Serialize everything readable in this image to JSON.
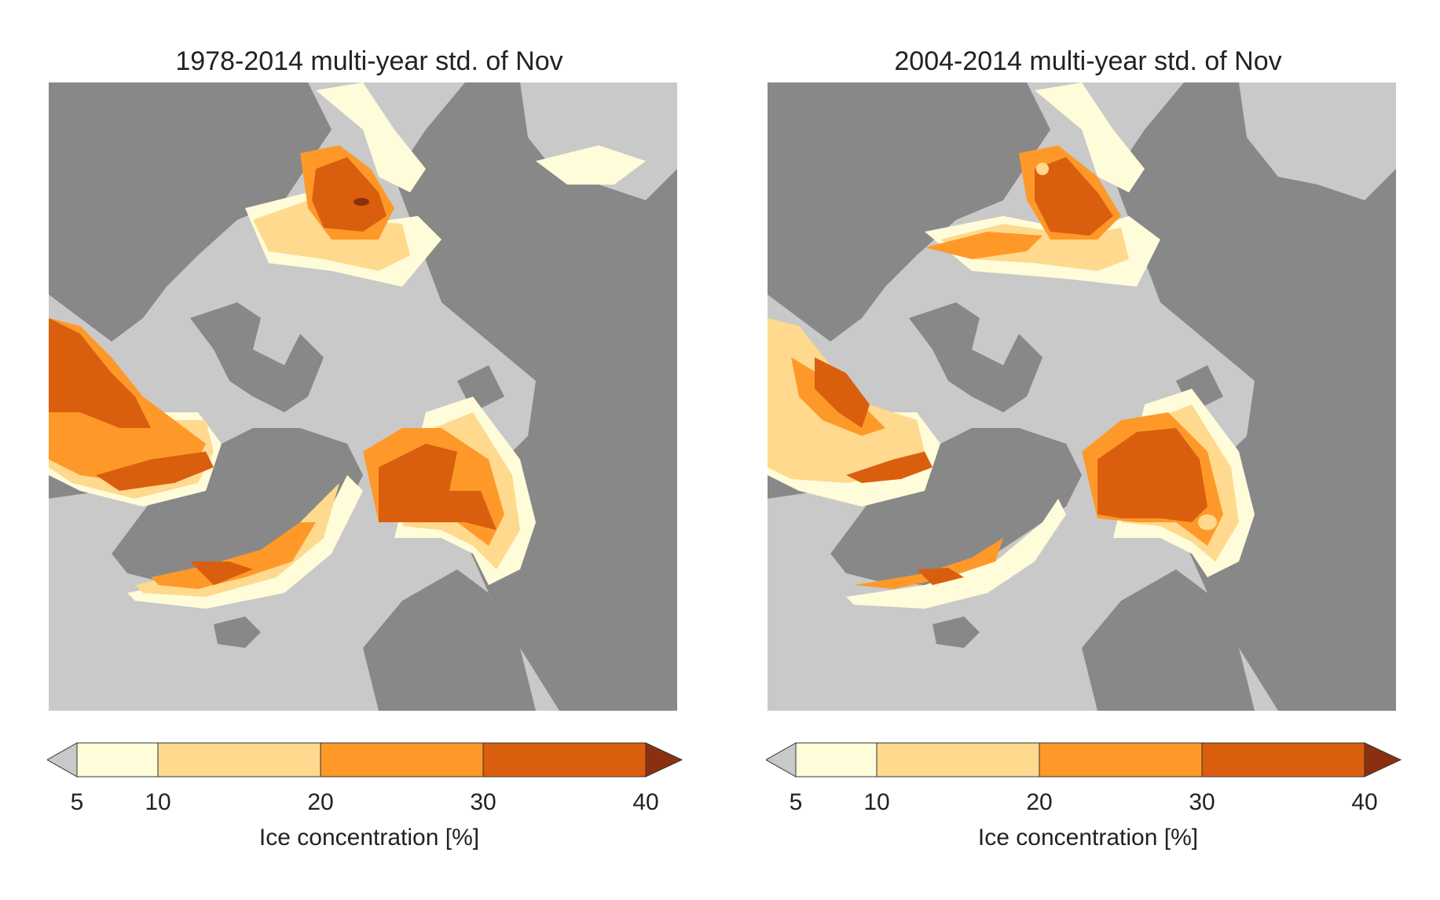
{
  "colors": {
    "ocean_ice": "#c9c9c9",
    "land": "#888888",
    "under": "#c9c9c9",
    "over": "#8a3010",
    "bins": [
      "#fffcd9",
      "#fed98e",
      "#fe9929",
      "#d95f0e"
    ]
  },
  "colorbar": {
    "label": "Ice concentration [%]",
    "ticks": [
      "5",
      "10",
      "20",
      "30",
      "40"
    ],
    "bounds": [
      5,
      10,
      20,
      30,
      40
    ]
  },
  "panels": [
    {
      "title": "1978-2014 multi-year std. of Nov"
    },
    {
      "title": "2004-2014 multi-year std. of Nov"
    }
  ]
}
